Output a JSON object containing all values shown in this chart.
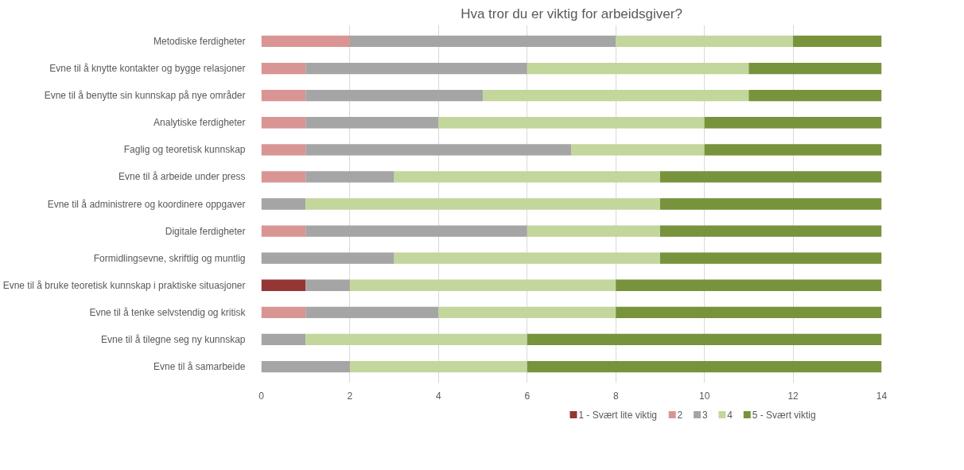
{
  "chart_data": {
    "type": "bar",
    "orientation": "horizontal",
    "stacked": true,
    "title": "Hva tror du er viktig for arbeidsgiver?",
    "categories": [
      "Metodiske ferdigheter",
      "Evne til å knytte kontakter og bygge relasjoner",
      "Evne til å benytte sin kunnskap på nye områder",
      "Analytiske ferdigheter",
      "Faglig og teoretisk kunnskap",
      "Evne til å arbeide under press",
      "Evne til å administrere og koordinere oppgaver",
      "Digitale ferdigheter",
      "Formidlingsevne, skriftlig og muntlig",
      "Evne til å bruke teoretisk kunnskap i praktiske situasjoner",
      "Evne til å tenke selvstendig og kritisk",
      "Evne til å tilegne seg ny kunnskap",
      "Evne til å samarbeide"
    ],
    "series": [
      {
        "name": "1 - Svært lite viktig",
        "color": "#943634",
        "values": [
          0,
          0,
          0,
          0,
          0,
          0,
          0,
          0,
          0,
          1,
          0,
          0,
          0
        ]
      },
      {
        "name": "2",
        "color": "#d99594",
        "values": [
          2,
          1,
          1,
          1,
          1,
          1,
          0,
          1,
          0,
          0,
          1,
          0,
          0
        ]
      },
      {
        "name": "3",
        "color": "#a5a5a5",
        "values": [
          6,
          5,
          4,
          3,
          6,
          2,
          1,
          5,
          3,
          1,
          3,
          1,
          2
        ]
      },
      {
        "name": "4",
        "color": "#c3d69b",
        "values": [
          4,
          5,
          6,
          6,
          3,
          6,
          8,
          3,
          6,
          6,
          4,
          5,
          4
        ]
      },
      {
        "name": "5 - Svært viktig",
        "color": "#77933c",
        "values": [
          2,
          3,
          3,
          4,
          4,
          5,
          5,
          5,
          5,
          6,
          6,
          8,
          8
        ]
      }
    ],
    "xlim": [
      0,
      14
    ],
    "xticks": [
      0,
      2,
      4,
      6,
      8,
      10,
      12,
      14
    ],
    "grid": "x",
    "legend": "bottom"
  }
}
